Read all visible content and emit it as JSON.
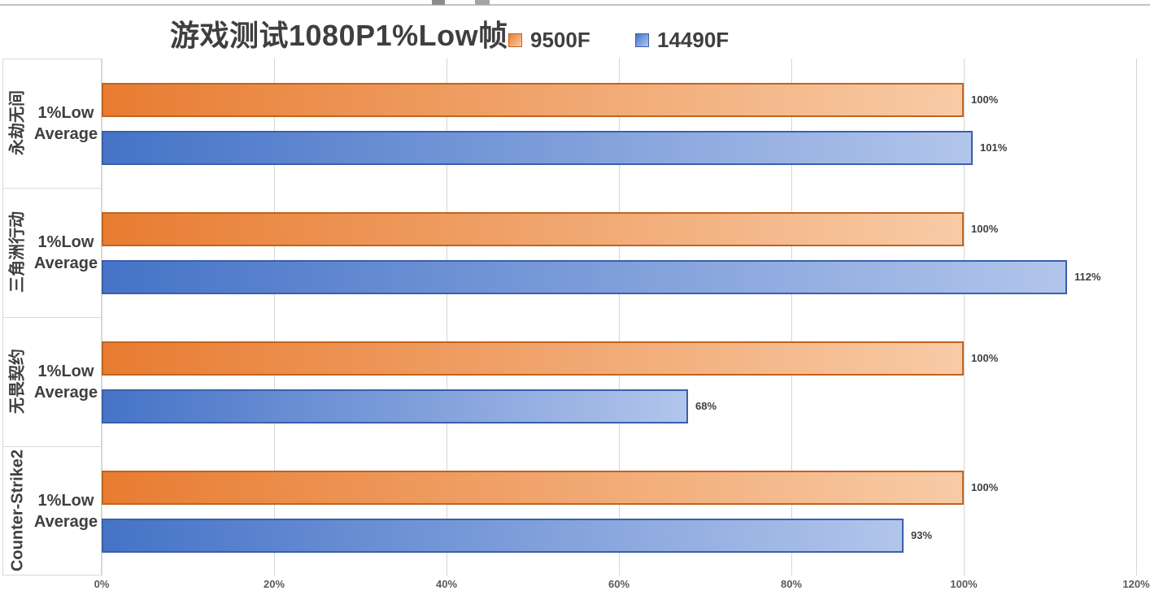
{
  "chart_data": {
    "type": "bar",
    "orientation": "horizontal",
    "title": "游戏测试1080P1%Low帧",
    "categories": [
      "永劫无间",
      "三角洲行动",
      "无畏契约",
      "Counter-Strike2"
    ],
    "category_sub_lines": [
      "1%Low",
      "Average"
    ],
    "series": [
      {
        "name": "9500F",
        "values": [
          100,
          100,
          100,
          100
        ],
        "labels": [
          "100%",
          "100%",
          "100%",
          "100%"
        ],
        "fill_left": "#E87C31",
        "fill_right": "#F8CBA6",
        "border": "#C1641F"
      },
      {
        "name": "14490F",
        "values": [
          101,
          112,
          68,
          93
        ],
        "labels": [
          "101%",
          "112%",
          "68%",
          "93%"
        ],
        "fill_left": "#4573C7",
        "fill_right": "#B2C5EB",
        "border": "#3A5FAD"
      }
    ],
    "x_ticks": [
      "0%",
      "20%",
      "40%",
      "60%",
      "80%",
      "100%",
      "120%"
    ],
    "xlim": [
      0,
      120
    ],
    "grid": true,
    "legend_position": "top"
  },
  "colors": {
    "text_dark": "#3F3F3F",
    "text_axis": "#595959",
    "gridline": "#D6D6D6",
    "box_border": "#D9D9D9"
  }
}
